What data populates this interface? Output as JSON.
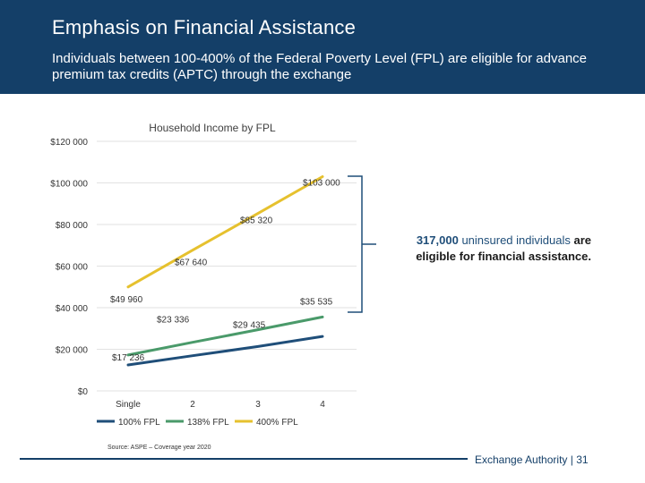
{
  "slide": {
    "title": "Emphasis on Financial Assistance",
    "subtitle": "Individuals between 100-400% of the Federal Poverty Level (FPL) are eligible for advance premium tax credits (APTC) through the exchange"
  },
  "callout": {
    "number": "317,000",
    "middle": " uninsured individuals ",
    "end": "are eligible for financial assistance."
  },
  "source": "Source: ASPE – Coverage year 2020",
  "footer": {
    "org": "Exchange Authority",
    "separator": "|",
    "page": "31"
  },
  "colors": {
    "header_bg": "#143f68",
    "series_100": "#1f4e79",
    "series_138": "#4a9a6a",
    "series_400": "#e6c12e",
    "grid": "#d9d9d9",
    "bracket": "#1f4e79"
  },
  "chart_data": {
    "type": "line",
    "title": "Household Income by FPL",
    "categories": [
      "Single",
      "2",
      "3",
      "4"
    ],
    "ylim": [
      0,
      120000
    ],
    "y_ticks": [
      0,
      20000,
      40000,
      60000,
      80000,
      100000,
      120000
    ],
    "y_tick_labels": [
      "$0",
      "$20 000",
      "$40 000",
      "$60 000",
      "$80 000",
      "$100 000",
      "$120 000"
    ],
    "grid": true,
    "legend_position": "bottom-left",
    "series": [
      {
        "name": "100% FPL",
        "color": "#1f4e79",
        "values": [
          12490,
          16910,
          21330,
          26200
        ],
        "labels": [
          "",
          "",
          "",
          ""
        ]
      },
      {
        "name": "138% FPL",
        "color": "#4a9a6a",
        "values": [
          17236,
          23336,
          29435,
          35535
        ],
        "labels": [
          "$17 236",
          "$23 336",
          "$29 435",
          "$35 535"
        ]
      },
      {
        "name": "400% FPL",
        "color": "#e6c12e",
        "values": [
          49960,
          67640,
          85320,
          103000
        ],
        "labels": [
          "$49 960",
          "$67 640",
          "$85 320",
          "$103 000"
        ]
      }
    ]
  }
}
